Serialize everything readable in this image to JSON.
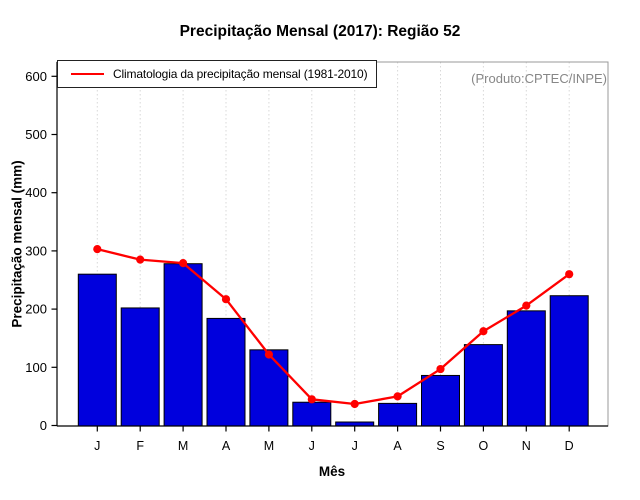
{
  "chart_data": {
    "type": "bar",
    "title": "Precipitação Mensal (2017): Região 52",
    "xlabel": "Mês",
    "ylabel": "Precipitação mensal (mm)",
    "annotation": "(Produto:CPTEC/INPE)",
    "categories": [
      "J",
      "F",
      "M",
      "A",
      "M",
      "J",
      "J",
      "A",
      "S",
      "O",
      "N",
      "D"
    ],
    "series": [
      {
        "name": "Precipitação Mensal (2017)",
        "type": "bar",
        "color": "#0000dd",
        "values": [
          260,
          202,
          278,
          184,
          130,
          40,
          6,
          38,
          86,
          139,
          197,
          223
        ]
      },
      {
        "name": "Climatologia da precipitação mensal (1981-2010)",
        "type": "line",
        "color": "#ff0000",
        "values": [
          303,
          285,
          279,
          217,
          122,
          45,
          37,
          50,
          97,
          162,
          206,
          260
        ]
      }
    ],
    "ylim": [
      0,
      600
    ],
    "yticks": [
      0,
      100,
      200,
      300,
      400,
      500,
      600
    ],
    "grid": "vertical-dotted",
    "legend_position": "top-left",
    "legend_entries": [
      "Climatologia da precipitação mensal (1981-2010)"
    ]
  },
  "colors": {
    "bar": "#0000dd",
    "bar_border": "#000000",
    "line": "#ff0000",
    "grid": "#d8d8d8",
    "frame": "#999999",
    "axis": "#000000",
    "tick_text": "#000000",
    "annotation": "#878787",
    "background": "#ffffff"
  }
}
